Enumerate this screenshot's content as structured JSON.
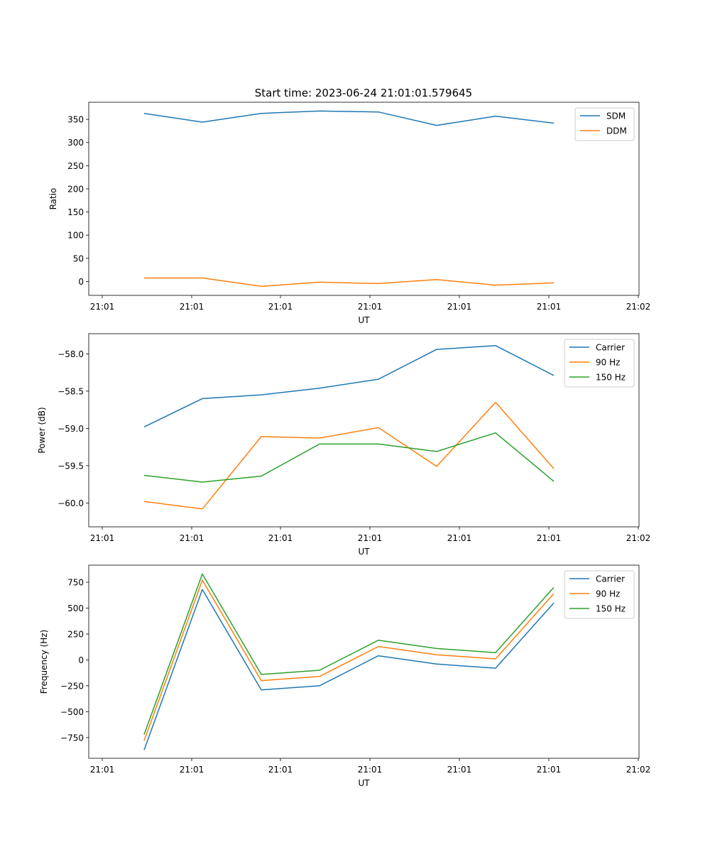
{
  "figure_title": "Start time: 2023-06-24 21:01:01.579645",
  "colors": {
    "blue": "#1f77b4",
    "orange": "#ff7f0e",
    "green": "#2ca02c"
  },
  "chart_data": [
    {
      "type": "line",
      "title": "Start time: 2023-06-24 21:01:01.579645",
      "xlabel": "UT",
      "ylabel": "Ratio",
      "xticks": [
        "21:01",
        "21:01",
        "21:01",
        "21:01",
        "21:01",
        "21:01",
        "21:02"
      ],
      "yticks": [
        0,
        50,
        100,
        150,
        200,
        250,
        300,
        350
      ],
      "ylim": [
        -30,
        387
      ],
      "grid": false,
      "legend_position": "top-right",
      "series": [
        {
          "name": "SDM",
          "color": "#1f77b4",
          "values": [
            363,
            344,
            363,
            368,
            366,
            337,
            357,
            342
          ]
        },
        {
          "name": "DDM",
          "color": "#ff7f0e",
          "values": [
            7.5,
            7.5,
            -10.5,
            -1.5,
            -4.5,
            4,
            -8,
            -3
          ]
        }
      ]
    },
    {
      "type": "line",
      "xlabel": "UT",
      "ylabel": "Power (dB)",
      "xticks": [
        "21:01",
        "21:01",
        "21:01",
        "21:01",
        "21:01",
        "21:01",
        "21:02"
      ],
      "yticks": [
        -60.0,
        -59.5,
        -59.0,
        -58.5,
        -58.0
      ],
      "ytick_labels": [
        "−60.0",
        "−59.5",
        "−59.0",
        "−58.5",
        "−58.0"
      ],
      "ylim": [
        -60.32,
        -57.73
      ],
      "grid": false,
      "legend_position": "top-right",
      "series": [
        {
          "name": "Carrier",
          "color": "#1f77b4",
          "values": [
            -58.98,
            -58.6,
            -58.55,
            -58.46,
            -58.34,
            -57.94,
            -57.89,
            -58.29
          ]
        },
        {
          "name": "90 Hz",
          "color": "#ff7f0e",
          "values": [
            -59.98,
            -60.08,
            -59.11,
            -59.13,
            -58.99,
            -59.51,
            -58.65,
            -59.54
          ]
        },
        {
          "name": "150 Hz",
          "color": "#2ca02c",
          "values": [
            -59.63,
            -59.72,
            -59.64,
            -59.21,
            -59.21,
            -59.31,
            -59.06,
            -59.71
          ]
        }
      ]
    },
    {
      "type": "line",
      "xlabel": "UT",
      "ylabel": "Frequency (Hz)",
      "xticks": [
        "21:01",
        "21:01",
        "21:01",
        "21:01",
        "21:01",
        "21:01",
        "21:02"
      ],
      "yticks": [
        -750,
        -500,
        -250,
        0,
        250,
        500,
        750
      ],
      "ytick_labels": [
        "−750",
        "−500",
        "−250",
        "0",
        "250",
        "500",
        "750"
      ],
      "ylim": [
        -950,
        915
      ],
      "grid": false,
      "legend_position": "top-right",
      "series": [
        {
          "name": "Carrier",
          "color": "#1f77b4",
          "values": [
            -870,
            680,
            -290,
            -250,
            40,
            -40,
            -80,
            550
          ]
        },
        {
          "name": "90 Hz",
          "color": "#ff7f0e",
          "values": [
            -780,
            770,
            -200,
            -160,
            130,
            50,
            10,
            640
          ]
        },
        {
          "name": "150 Hz",
          "color": "#2ca02c",
          "values": [
            -720,
            830,
            -140,
            -100,
            190,
            110,
            70,
            700
          ]
        }
      ]
    }
  ]
}
